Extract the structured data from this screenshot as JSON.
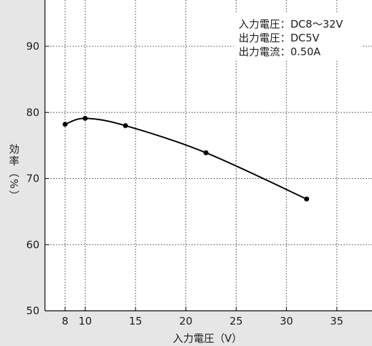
{
  "chart_data": {
    "type": "line",
    "title": "",
    "xlabel": "入力電圧（V）",
    "ylabel": "効率（%）",
    "xlim": [
      6,
      38.5
    ],
    "ylim": [
      50,
      97
    ],
    "xticks": [
      8,
      10,
      15,
      20,
      25,
      30,
      35
    ],
    "yticks": [
      50,
      60,
      70,
      80,
      90
    ],
    "grid": true,
    "series": [
      {
        "x": [
          8,
          10,
          14,
          22,
          32
        ],
        "y": [
          78.2,
          79.1,
          78.0,
          73.9,
          66.9
        ]
      }
    ],
    "annotations": [
      "入力電圧：DC8〜32V",
      "出力電圧：DC5V",
      "出力電流：0.50A"
    ],
    "colors": {
      "background": "#e6e6e6",
      "plot_area": "#ffffff",
      "line": "#000000"
    }
  }
}
